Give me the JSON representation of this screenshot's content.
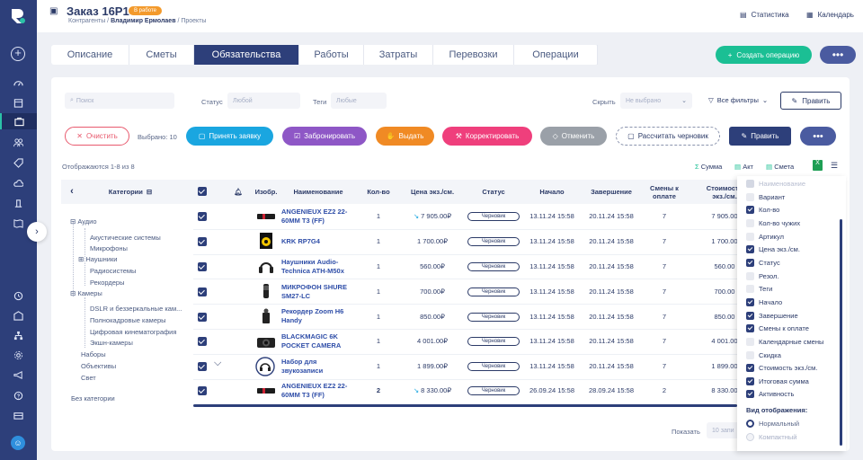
{
  "header": {
    "title": "Заказ 16Р1",
    "badge": "В работе",
    "breadcrumb": [
      "Контрагенты",
      "Владимир Ермолаев",
      "Проекты"
    ],
    "links": [
      "Статистика",
      "Календарь"
    ]
  },
  "tabs": [
    "Описание",
    "Сметы",
    "Обязательства",
    "Работы",
    "Затраты",
    "Перевозки",
    "Операции"
  ],
  "active_tab": "Обязательства",
  "create_button": "Создать операцию",
  "filters": {
    "search_placeholder": "Поиск",
    "status_label": "Статус",
    "status_placeholder": "Любой",
    "tags_label": "Теги",
    "tags_placeholder": "Любые",
    "hide_label": "Скрыть",
    "hide_placeholder": "Не выбрано",
    "all_filters": "Все фильтры",
    "edit": "Править"
  },
  "actions": {
    "clear": "Очистить",
    "selected": "Выбрано: 10",
    "accept": "Принять заявку",
    "reserve": "Забронировать",
    "issue": "Выдать",
    "adjust": "Корректировать",
    "cancel": "Отменить",
    "draft": "Рассчитать черновик",
    "edit": "Править"
  },
  "summary": {
    "shown": "Отображаются 1-8 из 8",
    "sum": "Сумма",
    "act": "Акт",
    "estimate": "Смета"
  },
  "table": {
    "categories_header": "Категории",
    "columns": [
      "Изобр.",
      "Наименование",
      "Кол-во",
      "Цена экз./см.",
      "Статус",
      "Начало",
      "Завершение",
      "Смены к оплате",
      "Стоимость экз./см."
    ],
    "rows": [
      {
        "name": "ANGENIEUX EZ2 22-60MM T3 (FF)",
        "qty": "1",
        "price": "7 905.00₽",
        "status": "Черновик",
        "start": "13.11.24 15:58",
        "end": "20.11.24 15:58",
        "shifts": "7",
        "cost": "7 905.00"
      },
      {
        "name": "KRK RP7G4",
        "qty": "1",
        "price": "1 700.00₽",
        "status": "Черновик",
        "start": "13.11.24 15:58",
        "end": "20.11.24 15:58",
        "shifts": "7",
        "cost": "1 700.00"
      },
      {
        "name": "Наушники Audio-Technica ATH-M50x",
        "qty": "1",
        "price": "560.00₽",
        "status": "Черновик",
        "start": "13.11.24 15:58",
        "end": "20.11.24 15:58",
        "shifts": "7",
        "cost": "560.00"
      },
      {
        "name": "МИКРОФОН SHURE SM27-LC",
        "qty": "1",
        "price": "700.00₽",
        "status": "Черновик",
        "start": "13.11.24 15:58",
        "end": "20.11.24 15:58",
        "shifts": "7",
        "cost": "700.00"
      },
      {
        "name": "Рекордер Zoom H6 Handy",
        "qty": "1",
        "price": "850.00₽",
        "status": "Черновик",
        "start": "13.11.24 15:58",
        "end": "20.11.24 15:58",
        "shifts": "7",
        "cost": "850.00"
      },
      {
        "name": "BLACKMAGIC 6K POCKET CAMERA",
        "qty": "1",
        "price": "4 001.00₽",
        "status": "Черновик",
        "start": "13.11.24 15:58",
        "end": "20.11.24 15:58",
        "shifts": "7",
        "cost": "4 001.00"
      },
      {
        "name": "Набор для звукозаписи",
        "qty": "1",
        "price": "1 899.00₽",
        "status": "Черновик",
        "start": "13.11.24 15:58",
        "end": "20.11.24 15:58",
        "shifts": "7",
        "cost": "1 899.00"
      },
      {
        "name": "ANGENIEUX EZ2 22-60MM T3 (FF)",
        "qty": "2",
        "price": "8 330.00₽",
        "status": "Черновик",
        "start": "26.09.24 15:58",
        "end": "28.09.24 15:58",
        "shifts": "2",
        "cost": "8 330.00"
      }
    ]
  },
  "categories": [
    "Аудио",
    "Акустические системы",
    "Микрофоны",
    "Наушники",
    "Радиосистемы",
    "Рекордеры",
    "Камеры",
    "DSLR и беззеркальные кам...",
    "Полнокадровые камеры",
    "Цифровая кинематография",
    "Экшн-камеры",
    "Наборы",
    "Объективы",
    "Свет",
    "Без категории"
  ],
  "column_panel": {
    "items": [
      {
        "label": "Наименование",
        "state": "disabled"
      },
      {
        "label": "Вариант",
        "state": "off"
      },
      {
        "label": "Кол-во",
        "state": "on"
      },
      {
        "label": "Кол-во чужих",
        "state": "off"
      },
      {
        "label": "Артикул",
        "state": "off"
      },
      {
        "label": "Цена экз./см.",
        "state": "on"
      },
      {
        "label": "Статус",
        "state": "on"
      },
      {
        "label": "Резол.",
        "state": "off"
      },
      {
        "label": "Теги",
        "state": "off"
      },
      {
        "label": "Начало",
        "state": "on"
      },
      {
        "label": "Завершение",
        "state": "on"
      },
      {
        "label": "Смены к оплате",
        "state": "on"
      },
      {
        "label": "Календарные смены",
        "state": "off"
      },
      {
        "label": "Скидка",
        "state": "off"
      },
      {
        "label": "Стоимость экз./см.",
        "state": "on"
      },
      {
        "label": "Итоговая сумма",
        "state": "on"
      },
      {
        "label": "Активность",
        "state": "on"
      }
    ],
    "view_label": "Вид отображения:",
    "view_options": [
      "Нормальный",
      "Компактный"
    ]
  },
  "footer": {
    "show_label": "Показать",
    "show_value": "10 запи"
  },
  "colors": {
    "rail": "#2d3f7a",
    "accent_green": "#1bbf94",
    "primary": "#2d3f7a"
  }
}
